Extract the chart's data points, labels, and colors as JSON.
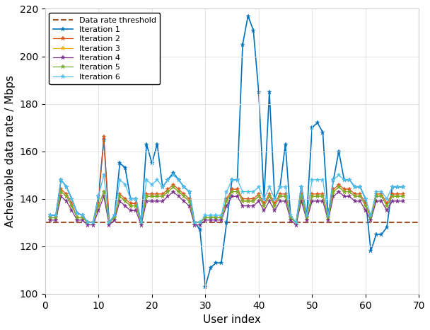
{
  "xlabel": "User index",
  "ylabel": "Acheivable data rate / Mbps",
  "xlim": [
    0,
    70
  ],
  "ylim": [
    100,
    220
  ],
  "yticks": [
    100,
    120,
    140,
    160,
    180,
    200,
    220
  ],
  "xticks": [
    0,
    10,
    20,
    30,
    40,
    50,
    60,
    70
  ],
  "threshold": 130,
  "threshold_label": "Data rate threshold",
  "threshold_color": "#A0522D",
  "colors": {
    "iter1": "#0072BD",
    "iter2": "#D95319",
    "iter3": "#EDB120",
    "iter4": "#7E2F8E",
    "iter5": "#77AC30",
    "iter6": "#4DBEEE"
  },
  "iter_labels": [
    "Iteration 1",
    "Iteration 2",
    "Iteration 3",
    "Iteration 4",
    "Iteration 5",
    "Iteration 6"
  ],
  "iter1": [
    133,
    133,
    148,
    145,
    140,
    134,
    133,
    130,
    130,
    141,
    165,
    130,
    133,
    155,
    153,
    140,
    140,
    130,
    163,
    155,
    163,
    145,
    148,
    151,
    148,
    145,
    143,
    130,
    127,
    103,
    111,
    113,
    113,
    130,
    148,
    148,
    205,
    217,
    211,
    185,
    140,
    185,
    140,
    145,
    163,
    132,
    130,
    145,
    133,
    170,
    172,
    168,
    133,
    148,
    160,
    148,
    148,
    145,
    145,
    140,
    118,
    125,
    125,
    128,
    145,
    145,
    145
  ],
  "iter2": [
    132,
    132,
    144,
    142,
    138,
    132,
    132,
    130,
    130,
    138,
    166,
    130,
    132,
    142,
    140,
    138,
    138,
    130,
    142,
    142,
    142,
    142,
    144,
    146,
    144,
    142,
    140,
    130,
    130,
    132,
    132,
    132,
    132,
    140,
    144,
    144,
    140,
    140,
    140,
    142,
    138,
    142,
    138,
    142,
    142,
    132,
    130,
    142,
    132,
    142,
    142,
    142,
    132,
    144,
    146,
    144,
    144,
    142,
    142,
    138,
    132,
    142,
    142,
    138,
    142,
    142,
    142
  ],
  "iter3": [
    132,
    132,
    143,
    141,
    137,
    132,
    132,
    130,
    130,
    137,
    143,
    130,
    132,
    141,
    139,
    137,
    137,
    130,
    141,
    141,
    141,
    141,
    143,
    145,
    143,
    141,
    139,
    130,
    130,
    132,
    132,
    132,
    132,
    139,
    143,
    143,
    139,
    139,
    139,
    141,
    137,
    141,
    137,
    141,
    141,
    132,
    130,
    141,
    132,
    141,
    141,
    141,
    132,
    143,
    145,
    143,
    143,
    141,
    141,
    137,
    132,
    141,
    141,
    137,
    141,
    141,
    141
  ],
  "iter4": [
    131,
    131,
    141,
    139,
    135,
    131,
    131,
    129,
    129,
    135,
    141,
    129,
    131,
    139,
    137,
    135,
    135,
    129,
    139,
    139,
    139,
    139,
    141,
    143,
    141,
    139,
    137,
    129,
    129,
    131,
    131,
    131,
    131,
    137,
    141,
    141,
    137,
    137,
    137,
    139,
    135,
    139,
    135,
    139,
    139,
    131,
    129,
    139,
    131,
    139,
    139,
    139,
    131,
    141,
    143,
    141,
    141,
    139,
    139,
    135,
    131,
    139,
    139,
    135,
    139,
    139,
    139
  ],
  "iter5": [
    132,
    132,
    143,
    141,
    137,
    132,
    132,
    130,
    130,
    137,
    143,
    130,
    132,
    141,
    139,
    137,
    137,
    130,
    141,
    141,
    141,
    141,
    143,
    145,
    143,
    141,
    139,
    130,
    130,
    132,
    132,
    132,
    132,
    139,
    143,
    143,
    139,
    139,
    139,
    141,
    137,
    141,
    137,
    141,
    141,
    132,
    130,
    141,
    132,
    141,
    141,
    141,
    132,
    143,
    145,
    143,
    143,
    141,
    141,
    137,
    132,
    141,
    141,
    137,
    141,
    141,
    141
  ],
  "iter6": [
    133,
    133,
    148,
    145,
    140,
    134,
    133,
    130,
    130,
    141,
    150,
    130,
    133,
    148,
    146,
    140,
    140,
    130,
    148,
    146,
    148,
    145,
    148,
    150,
    148,
    145,
    143,
    130,
    130,
    133,
    133,
    133,
    133,
    143,
    148,
    148,
    143,
    143,
    143,
    145,
    140,
    145,
    140,
    145,
    145,
    133,
    130,
    145,
    133,
    148,
    148,
    148,
    133,
    148,
    150,
    148,
    148,
    145,
    145,
    140,
    133,
    143,
    143,
    140,
    145,
    145,
    145
  ]
}
